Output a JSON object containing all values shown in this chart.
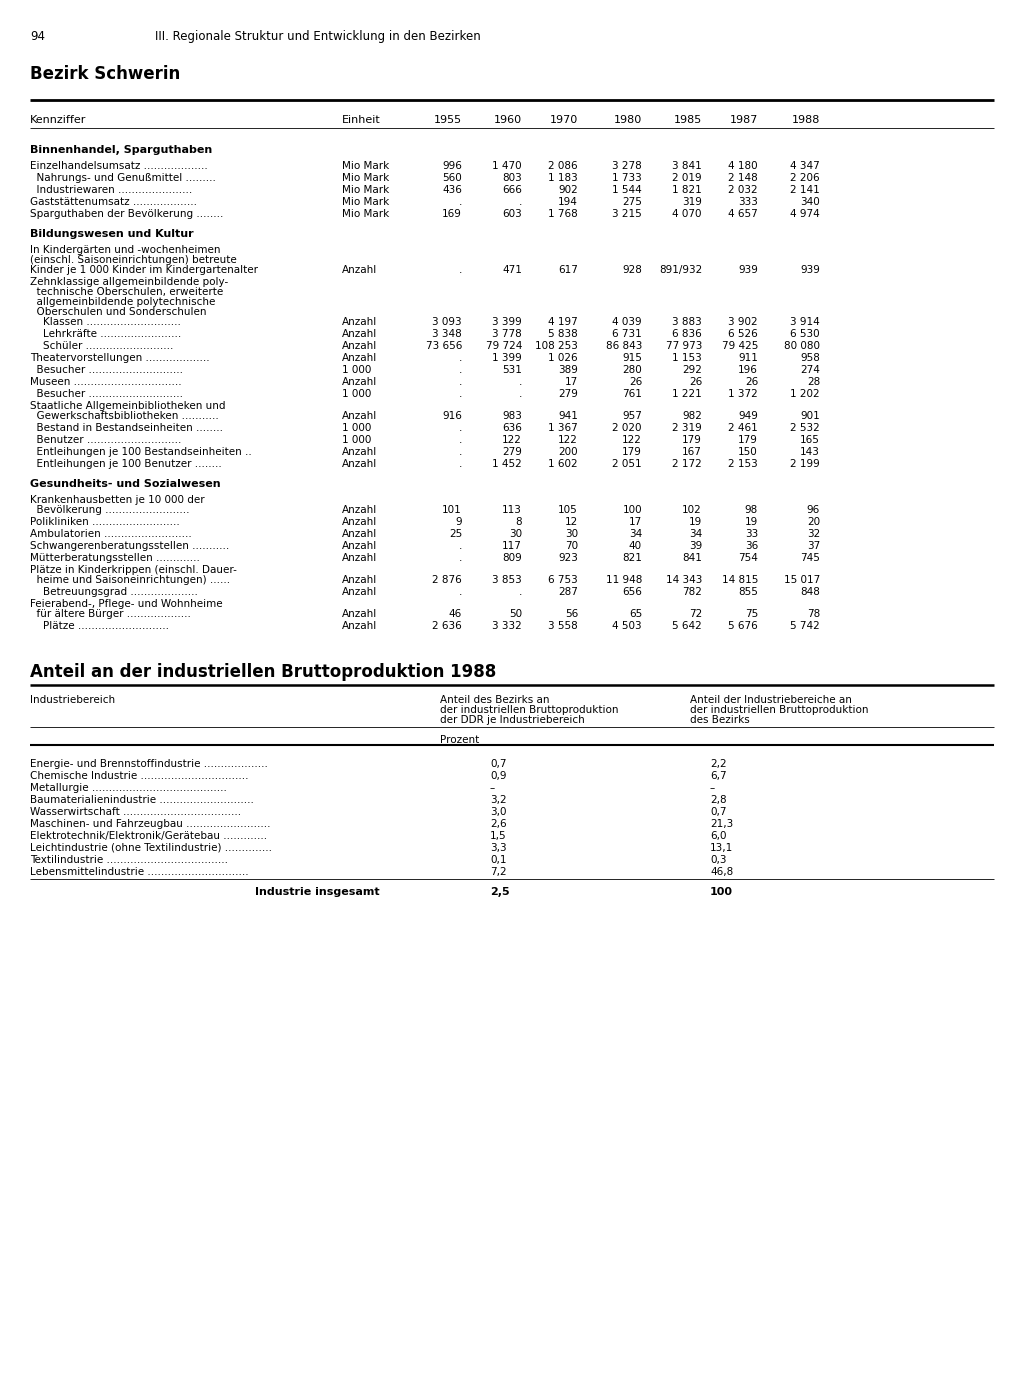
{
  "page_number": "94",
  "page_header": "III. Regionale Struktur und Entwicklung in den Bezirken",
  "title1": "Bezirk Schwerin",
  "col_headers": [
    "Kennziffer",
    "Einheit",
    "1955",
    "1960",
    "1970",
    "1980",
    "1985",
    "1987",
    "1988"
  ],
  "section1_title": "Binnenhandel, Sparguthaben",
  "section2_title": "Bildungswesen und Kultur",
  "section3_title": "Gesundheits- und Sozialwesen",
  "title2": "Anteil an der industriellen Bruttoproduktion 1988",
  "table2_header1": "Industriebereich",
  "table2_header2a_line1": "Anteil des Bezirks an",
  "table2_header2a_line2": "der industriellen Bruttoproduktion",
  "table2_header2a_line3": "der DDR je Industriebereich",
  "table2_header2b_line1": "Anteil der Industriebereiche an",
  "table2_header2b_line2": "der industriellen Bruttoproduktion",
  "table2_header2b_line3": "des Bezirks",
  "table2_subheader": "Prozent",
  "table2_total_label": "Industrie insgesamt",
  "table2_total_val1": "2,5",
  "table2_total_val2": "100",
  "bg_color": "#ffffff",
  "text_color": "#000000"
}
